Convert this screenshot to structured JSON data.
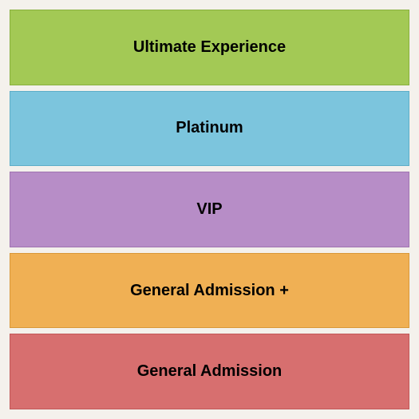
{
  "seating_chart": {
    "type": "infographic",
    "background_color": "#f4f1ec",
    "padding": 12,
    "gap": 7,
    "tiers": [
      {
        "label": "Ultimate Experience",
        "fill_color": "#a3c955",
        "border_color": "#88b03e",
        "font_size": 20
      },
      {
        "label": "Platinum",
        "fill_color": "#7cc5dd",
        "border_color": "#5eaec8",
        "font_size": 20
      },
      {
        "label": "VIP",
        "fill_color": "#b78dc7",
        "border_color": "#a074b1",
        "font_size": 20
      },
      {
        "label": "General Admission +",
        "fill_color": "#f0b054",
        "border_color": "#d9983a",
        "font_size": 20
      },
      {
        "label": "General Admission",
        "fill_color": "#d76f6f",
        "border_color": "#c25858",
        "font_size": 20
      }
    ]
  }
}
